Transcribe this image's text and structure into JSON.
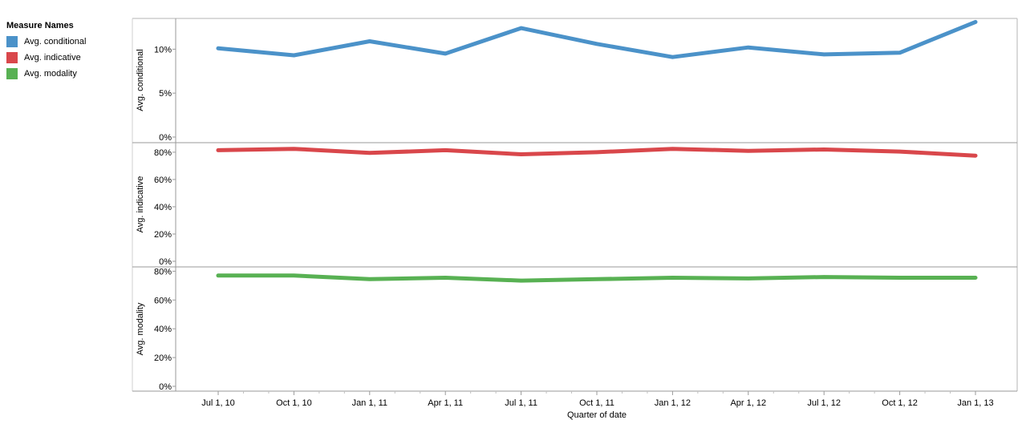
{
  "legend": {
    "title": "Measure Names",
    "items": [
      {
        "label": "Avg. conditional",
        "color": "#4b92c9"
      },
      {
        "label": "Avg. indicative",
        "color": "#d9474b"
      },
      {
        "label": "Avg. modality",
        "color": "#58b153"
      }
    ]
  },
  "chart_data": {
    "type": "line",
    "xlabel": "Quarter of date",
    "categories": [
      "Jul 1, 10",
      "Oct 1, 10",
      "Jan 1, 11",
      "Apr 1, 11",
      "Jul 1, 11",
      "Oct 1, 11",
      "Jan 1, 12",
      "Apr 1, 12",
      "Jul 1, 12",
      "Oct 1, 12",
      "Jan 1, 13"
    ],
    "grid": false,
    "legend_position": "top-left",
    "series": [
      {
        "name": "Avg. conditional",
        "color": "#4b92c9",
        "ylabel": "Avg. conditional",
        "ylim": [
          0,
          13.5
        ],
        "yticks": [
          0,
          5,
          10
        ],
        "tick_labels": [
          "0%",
          "5%",
          "10%"
        ],
        "values": [
          10.1,
          9.3,
          10.9,
          9.5,
          12.4,
          10.6,
          9.1,
          10.2,
          9.4,
          9.6,
          13.1
        ]
      },
      {
        "name": "Avg. indicative",
        "color": "#d9474b",
        "ylabel": "Avg. indicative",
        "ylim": [
          0,
          87
        ],
        "yticks": [
          0,
          20,
          40,
          60,
          80
        ],
        "tick_labels": [
          "0%",
          "20%",
          "40%",
          "60%",
          "80%"
        ],
        "values": [
          81.5,
          82.5,
          79.5,
          81.5,
          78.5,
          80,
          82.5,
          81,
          82,
          80.5,
          77.5
        ]
      },
      {
        "name": "Avg. modality",
        "color": "#58b153",
        "ylabel": "Avg. modality",
        "ylim": [
          0,
          83
        ],
        "yticks": [
          0,
          20,
          40,
          60,
          80
        ],
        "tick_labels": [
          "0%",
          "20%",
          "40%",
          "60%",
          "80%"
        ],
        "values": [
          77,
          77,
          74.5,
          75.5,
          73.5,
          74.5,
          75.5,
          75,
          76,
          75.5,
          75.5
        ]
      }
    ]
  }
}
